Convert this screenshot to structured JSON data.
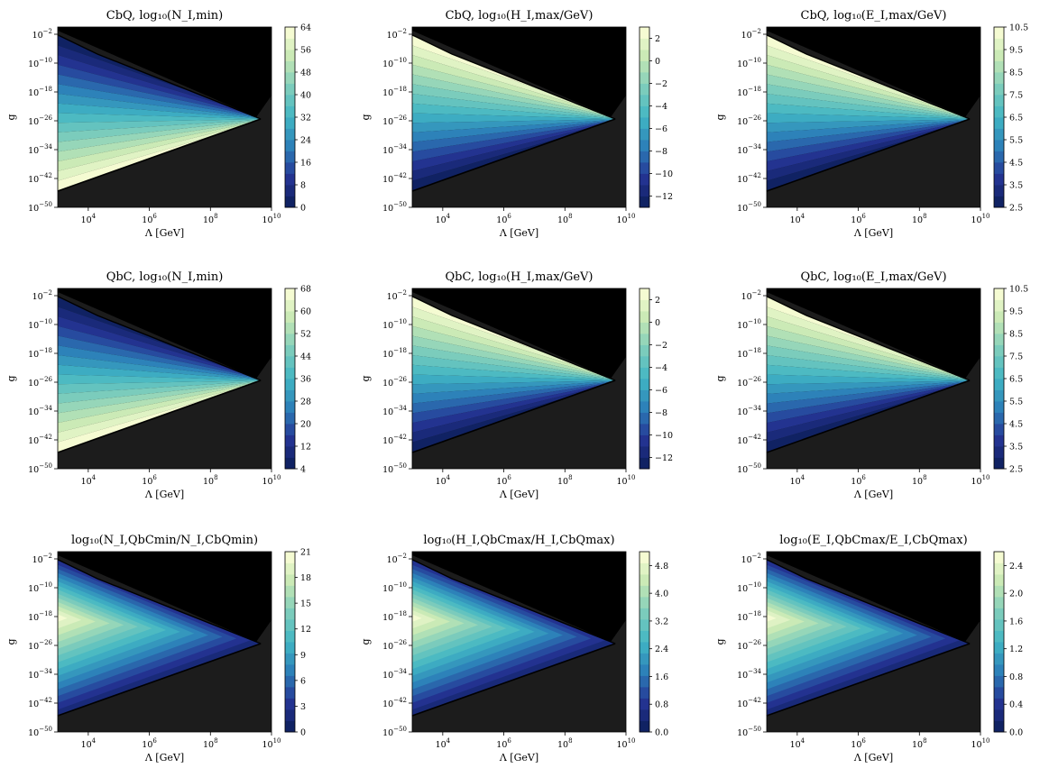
{
  "figure": {
    "layout": "3x3 grid of contour plots",
    "colormap": [
      "#0b1e58",
      "#253494",
      "#2c7fb8",
      "#41b6c4",
      "#7fcdbb",
      "#c7e9b4",
      "#ffffd9"
    ],
    "background_colors": {
      "excluded_region": "#000000",
      "shaded_region": "#1c1c1c"
    }
  },
  "chart_data": [
    {
      "type": "heatmap",
      "title": "CbQ, log₁₀(N_I,min)",
      "xlabel": "Λ [GeV]",
      "ylabel": "g",
      "xscale": "log",
      "yscale": "log",
      "xlim": [
        1000,
        10000000000.0
      ],
      "ylim": [
        1e-50,
        1
      ],
      "x_ticks": [
        "10^4",
        "10^6",
        "10^8",
        "10^10"
      ],
      "y_ticks": [
        "10^-2",
        "10^-10",
        "10^-18",
        "10^-26",
        "10^-34",
        "10^-42",
        "10^-50"
      ],
      "colorbar": {
        "ticks": [
          "0",
          "8",
          "16",
          "24",
          "32",
          "40",
          "48",
          "56",
          "64"
        ],
        "range": [
          0,
          64
        ]
      },
      "value_pattern": "low_top_high_bottom"
    },
    {
      "type": "heatmap",
      "title": "CbQ, log₁₀(H_I,max/GeV)",
      "xlabel": "Λ [GeV]",
      "ylabel": "g",
      "xscale": "log",
      "yscale": "log",
      "xlim": [
        1000,
        10000000000.0
      ],
      "ylim": [
        1e-50,
        1
      ],
      "x_ticks": [
        "10^4",
        "10^6",
        "10^8",
        "10^10"
      ],
      "y_ticks": [
        "10^-2",
        "10^-10",
        "10^-18",
        "10^-26",
        "10^-34",
        "10^-42",
        "10^-50"
      ],
      "colorbar": {
        "ticks": [
          "−12",
          "−10",
          "−8",
          "−6",
          "−4",
          "−2",
          "0",
          "2"
        ],
        "range": [
          -13,
          3
        ]
      },
      "value_pattern": "high_top_low_bottom"
    },
    {
      "type": "heatmap",
      "title": "CbQ, log₁₀(E_I,max/GeV)",
      "xlabel": "Λ [GeV]",
      "ylabel": "g",
      "xscale": "log",
      "yscale": "log",
      "xlim": [
        1000,
        10000000000.0
      ],
      "ylim": [
        1e-50,
        1
      ],
      "x_ticks": [
        "10^4",
        "10^6",
        "10^8",
        "10^10"
      ],
      "y_ticks": [
        "10^-2",
        "10^-10",
        "10^-18",
        "10^-26",
        "10^-34",
        "10^-42",
        "10^-50"
      ],
      "colorbar": {
        "ticks": [
          "2.5",
          "3.5",
          "4.5",
          "5.5",
          "6.5",
          "7.5",
          "8.5",
          "9.5",
          "10.5"
        ],
        "range": [
          2.5,
          10.5
        ]
      },
      "value_pattern": "high_top_low_bottom"
    },
    {
      "type": "heatmap",
      "title": "QbC, log₁₀(N_I,min)",
      "xlabel": "Λ [GeV]",
      "ylabel": "g",
      "xscale": "log",
      "yscale": "log",
      "xlim": [
        1000,
        10000000000.0
      ],
      "ylim": [
        1e-50,
        1
      ],
      "x_ticks": [
        "10^4",
        "10^6",
        "10^8",
        "10^10"
      ],
      "y_ticks": [
        "10^-2",
        "10^-10",
        "10^-18",
        "10^-26",
        "10^-34",
        "10^-42",
        "10^-50"
      ],
      "colorbar": {
        "ticks": [
          "4",
          "12",
          "20",
          "28",
          "36",
          "44",
          "52",
          "60",
          "68"
        ],
        "range": [
          4,
          68
        ]
      },
      "value_pattern": "low_top_high_bottom"
    },
    {
      "type": "heatmap",
      "title": "QbC, log₁₀(H_I,max/GeV)",
      "xlabel": "Λ [GeV]",
      "ylabel": "g",
      "xscale": "log",
      "yscale": "log",
      "xlim": [
        1000,
        10000000000.0
      ],
      "ylim": [
        1e-50,
        1
      ],
      "x_ticks": [
        "10^4",
        "10^6",
        "10^8",
        "10^10"
      ],
      "y_ticks": [
        "10^-2",
        "10^-10",
        "10^-18",
        "10^-26",
        "10^-34",
        "10^-42",
        "10^-50"
      ],
      "colorbar": {
        "ticks": [
          "−12",
          "−10",
          "−8",
          "−6",
          "−4",
          "−2",
          "0",
          "2"
        ],
        "range": [
          -13,
          3
        ]
      },
      "value_pattern": "high_top_low_bottom"
    },
    {
      "type": "heatmap",
      "title": "QbC, log₁₀(E_I,max/GeV)",
      "xlabel": "Λ [GeV]",
      "ylabel": "g",
      "xscale": "log",
      "yscale": "log",
      "xlim": [
        1000,
        10000000000.0
      ],
      "ylim": [
        1e-50,
        1
      ],
      "x_ticks": [
        "10^4",
        "10^6",
        "10^8",
        "10^10"
      ],
      "y_ticks": [
        "10^-2",
        "10^-10",
        "10^-18",
        "10^-26",
        "10^-34",
        "10^-42",
        "10^-50"
      ],
      "colorbar": {
        "ticks": [
          "2.5",
          "3.5",
          "4.5",
          "5.5",
          "6.5",
          "7.5",
          "8.5",
          "9.5",
          "10.5"
        ],
        "range": [
          2.5,
          10.5
        ]
      },
      "value_pattern": "high_top_low_bottom"
    },
    {
      "type": "heatmap",
      "title": "log₁₀(N_I,QbCmin/N_I,CbQmin)",
      "xlabel": "Λ [GeV]",
      "ylabel": "g",
      "xscale": "log",
      "yscale": "log",
      "xlim": [
        1000,
        10000000000.0
      ],
      "ylim": [
        1e-50,
        1
      ],
      "x_ticks": [
        "10^4",
        "10^6",
        "10^8",
        "10^10"
      ],
      "y_ticks": [
        "10^-2",
        "10^-10",
        "10^-18",
        "10^-26",
        "10^-34",
        "10^-42",
        "10^-50"
      ],
      "colorbar": {
        "ticks": [
          "0",
          "3",
          "6",
          "9",
          "12",
          "15",
          "18",
          "21"
        ],
        "range": [
          0,
          21
        ]
      },
      "value_pattern": "peak_left_middle"
    },
    {
      "type": "heatmap",
      "title": "log₁₀(H_I,QbCmax/H_I,CbQmax)",
      "xlabel": "Λ [GeV]",
      "ylabel": "g",
      "xscale": "log",
      "yscale": "log",
      "xlim": [
        1000,
        10000000000.0
      ],
      "ylim": [
        1e-50,
        1
      ],
      "x_ticks": [
        "10^4",
        "10^6",
        "10^8",
        "10^10"
      ],
      "y_ticks": [
        "10^-2",
        "10^-10",
        "10^-18",
        "10^-26",
        "10^-34",
        "10^-42",
        "10^-50"
      ],
      "colorbar": {
        "ticks": [
          "0.0",
          "0.8",
          "1.6",
          "2.4",
          "3.2",
          "4.0",
          "4.8"
        ],
        "range": [
          0,
          5.2
        ]
      },
      "value_pattern": "peak_left_middle"
    },
    {
      "type": "heatmap",
      "title": "log₁₀(E_I,QbCmax/E_I,CbQmax)",
      "xlabel": "Λ [GeV]",
      "ylabel": "g",
      "xscale": "log",
      "yscale": "log",
      "xlim": [
        1000,
        10000000000.0
      ],
      "ylim": [
        1e-50,
        1
      ],
      "x_ticks": [
        "10^4",
        "10^6",
        "10^8",
        "10^10"
      ],
      "y_ticks": [
        "10^-2",
        "10^-10",
        "10^-18",
        "10^-26",
        "10^-34",
        "10^-42",
        "10^-50"
      ],
      "colorbar": {
        "ticks": [
          "0.0",
          "0.4",
          "0.8",
          "1.2",
          "1.6",
          "2.0",
          "2.4"
        ],
        "range": [
          0,
          2.6
        ]
      },
      "value_pattern": "peak_left_middle"
    }
  ]
}
